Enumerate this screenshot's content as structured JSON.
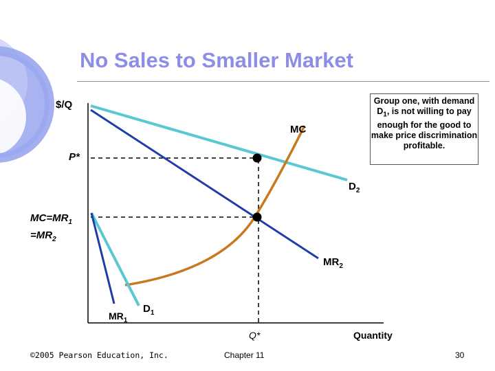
{
  "slide": {
    "title": "No Sales to Smaller Market",
    "callout": {
      "pre": "Group one, with demand D",
      "sub": "1",
      "post": ", is not willing to pay enough for the good to make price discrimination profitable."
    },
    "footer": {
      "copyright": "©2005 Pearson Education, Inc.",
      "chapter": "Chapter 11",
      "page": "30"
    },
    "colors": {
      "title": "#8c8ee6",
      "mc": "#c8781e",
      "demand": "#5ac8d2",
      "mr": "#1e3caa",
      "deco": "#9aa6ee"
    }
  },
  "chart_data": {
    "type": "diagram",
    "labels": {
      "yaxis": "$/Q",
      "xaxis": "Quantity",
      "mc": "MC",
      "p_star": "P*",
      "q_star": "Q*",
      "d2": {
        "base": "D",
        "sub": "2"
      },
      "mr2": {
        "base": "MR",
        "sub": "2"
      },
      "d1": {
        "base": "D",
        "sub": "1"
      },
      "mr1": {
        "base": "MR",
        "sub": "1"
      },
      "mc_eq": {
        "line1": "MC=MR",
        "sub1": "1",
        "line2": "=MR",
        "sub2": "2"
      }
    }
  }
}
